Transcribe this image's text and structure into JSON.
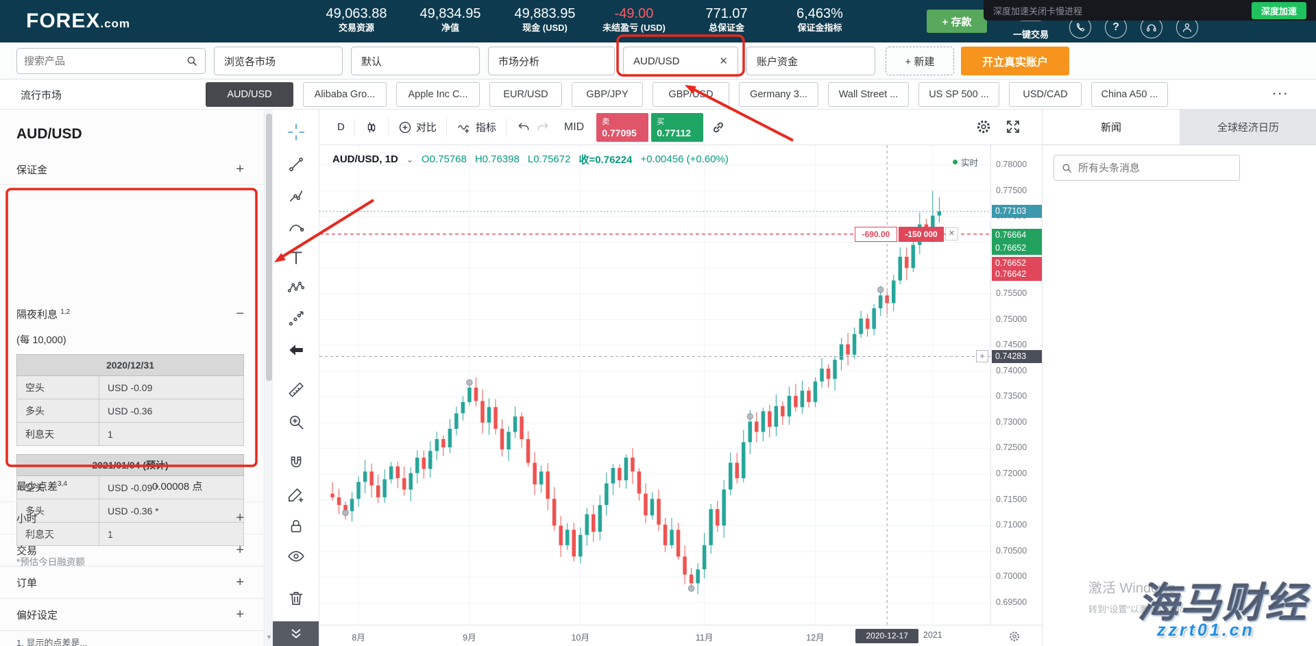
{
  "glyphs": {
    "close": "✕",
    "plus": "+",
    "minus": "−",
    "caret_down": "⌄",
    "more_dots": "...",
    "scroll_down_arrow": "▼",
    "question": "?"
  },
  "header": {
    "logo_text": "FOREX",
    "logo_suffix": ".com",
    "stats": [
      {
        "value": "49,063.88",
        "label": "交易资源"
      },
      {
        "value": "49,834.95",
        "label": "净值"
      },
      {
        "value": "49,883.95",
        "label": "现金 (USD)"
      },
      {
        "value": "-49.00",
        "label": "未结盈亏 (USD)"
      },
      {
        "value": "771.07",
        "label": "总保证金"
      },
      {
        "value": "6,463%",
        "label": "保证金指标"
      }
    ],
    "deposit_button": "+ 存款",
    "one_click_label": "一键交易",
    "speedup_overlay": {
      "text": "深度加速关闭卡慢进程",
      "button": "深度加速"
    }
  },
  "tabbar": {
    "search_placeholder": "搜索产品",
    "tabs": [
      "浏览各市场",
      "默认",
      "市场分析",
      "AUD/USD",
      "账户资金"
    ],
    "new_tab_label": "+ 新建",
    "open_account_label": "开立真实账户"
  },
  "chips": {
    "label": "流行市场",
    "items": [
      "AUD/USD",
      "Alibaba Gro...",
      "Apple Inc C...",
      "EUR/USD",
      "GBP/JPY",
      "GBP/USD",
      "Germany 3...",
      "Wall Street ...",
      "US SP 500 ...",
      "USD/CAD",
      "China A50 ..."
    ]
  },
  "sidebar": {
    "title": "AUD/USD",
    "margin_row": {
      "label": "保证金"
    },
    "overnight": {
      "title": "隔夜利息",
      "sup": "1,2",
      "per_label": "(每 10,000)",
      "tables": [
        {
          "header": "2020/12/31",
          "rows": [
            [
              "空头",
              "USD -0.09"
            ],
            [
              "多头",
              "USD -0.36"
            ],
            [
              "利息天",
              "1"
            ]
          ]
        },
        {
          "header": "2021/01/04 (预计)",
          "rows": [
            [
              "空头",
              "USD -0.09 *"
            ],
            [
              "多头",
              "USD -0.36 *"
            ],
            [
              "利息天",
              "1"
            ]
          ]
        }
      ],
      "footnote": "*预估今日融资额"
    },
    "spread_row": {
      "label": "最少点差",
      "sup": "3,4",
      "value": "0.00008 点"
    },
    "collapsed_rows": [
      "小时",
      "交易",
      "订单",
      "偏好设定"
    ],
    "clipped_note": "1. 显示的点差是..."
  },
  "chart": {
    "toolbar": {
      "timeframe": "D",
      "compare_label": "对比",
      "indicators_label": "指标",
      "mid_label": "MID",
      "sell_label": "卖",
      "sell_price": "0.77095",
      "buy_label": "买",
      "buy_price": "0.77112"
    },
    "info_line": {
      "symbol": "AUD/USD, 1D",
      "open": "O0.75768",
      "high": "H0.76398",
      "low": "L0.75672",
      "close": "收=0.76224",
      "change": "+0.00456 (+0.60%)",
      "realtime_label": "实时"
    }
  },
  "chart_data": {
    "type": "candlestick",
    "symbol": "AUD/USD",
    "timeframe": "1D",
    "ohlc_display": {
      "open": 0.75768,
      "high": 0.76398,
      "low": 0.75672,
      "close": 0.76224,
      "change": "+0.00456 (+0.60%)"
    },
    "current_price": 0.77103,
    "ylim": [
      0.6907,
      0.7839
    ],
    "y_ticks": [
      0.78,
      0.775,
      0.77,
      0.765,
      0.76,
      0.755,
      0.75,
      0.745,
      0.74,
      0.735,
      0.73,
      0.725,
      0.72,
      0.715,
      0.71,
      0.705,
      0.7,
      0.695
    ],
    "x_ticks": [
      {
        "label": "8月",
        "index": 4
      },
      {
        "label": "9月",
        "index": 21
      },
      {
        "label": "10月",
        "index": 38
      },
      {
        "label": "11月",
        "index": 57
      },
      {
        "label": "12月",
        "index": 74
      },
      {
        "label": "2021",
        "index": 92
      }
    ],
    "first_open": 0.7162,
    "closes": [
      0.7155,
      0.714,
      0.7128,
      0.7152,
      0.7185,
      0.7205,
      0.7178,
      0.7155,
      0.719,
      0.7215,
      0.7192,
      0.717,
      0.7202,
      0.7232,
      0.721,
      0.7245,
      0.7268,
      0.7252,
      0.7288,
      0.7318,
      0.734,
      0.7368,
      0.7342,
      0.73,
      0.733,
      0.7288,
      0.7248,
      0.7282,
      0.7312,
      0.7268,
      0.7222,
      0.718,
      0.7205,
      0.7152,
      0.71,
      0.7062,
      0.7092,
      0.704,
      0.7082,
      0.7122,
      0.7088,
      0.714,
      0.7182,
      0.7212,
      0.7188,
      0.7232,
      0.7205,
      0.7162,
      0.712,
      0.7152,
      0.7102,
      0.7062,
      0.7092,
      0.704,
      0.7005,
      0.6988,
      0.7015,
      0.7062,
      0.7132,
      0.71,
      0.717,
      0.7222,
      0.7192,
      0.7262,
      0.7302,
      0.7282,
      0.7322,
      0.7292,
      0.7332,
      0.7312,
      0.7352,
      0.733,
      0.7362,
      0.734,
      0.738,
      0.7405,
      0.7385,
      0.7422,
      0.7452,
      0.7432,
      0.7472,
      0.7502,
      0.7482,
      0.7522,
      0.7547,
      0.7532,
      0.7576,
      0.7622,
      0.76,
      0.7645,
      0.7685,
      0.7662,
      0.7702,
      0.771
    ],
    "wick_overrides": {
      "55": [
        0.7018,
        0.6978
      ],
      "92": [
        0.775,
        0.765
      ],
      "93": [
        0.7738,
        0.7688
      ]
    },
    "markers": [
      {
        "index": 2,
        "price": 0.7125
      },
      {
        "index": 21,
        "price": 0.7378
      },
      {
        "index": 55,
        "price": 0.6978
      },
      {
        "index": 64,
        "price": 0.7312
      },
      {
        "index": 84,
        "price": 0.7558
      }
    ],
    "price_tags": [
      {
        "text": "0.77103",
        "color": "#3c98ad"
      },
      {
        "text": "0.76664",
        "color": "#23a25f"
      },
      {
        "text": "0.76652",
        "color": "#23a25f"
      },
      {
        "text": "0.76652",
        "color": "#e0475a"
      },
      {
        "text": "0.76642",
        "color": "#e0475a"
      },
      {
        "text": "0.74283",
        "color": "#4a4e59"
      }
    ],
    "order_line": {
      "price": 0.7666,
      "pnl_label": "-690.00",
      "size_label": "-150 000"
    },
    "crosshair": {
      "price": 0.74283,
      "index": 85,
      "date_label": "2020-12-17"
    },
    "up_color": "#26a69a",
    "down_color": "#ef5350",
    "grid": true,
    "legend_position": "none"
  },
  "news_panel": {
    "tabs": [
      "新闻",
      "全球经济日历"
    ],
    "search_placeholder": "所有头条消息"
  },
  "watermarks": {
    "activate_title": "激活 Windows",
    "activate_sub": "转到“设置”以激活 Windows。",
    "brand": "海马财经",
    "site": "zzrt01.cn"
  }
}
